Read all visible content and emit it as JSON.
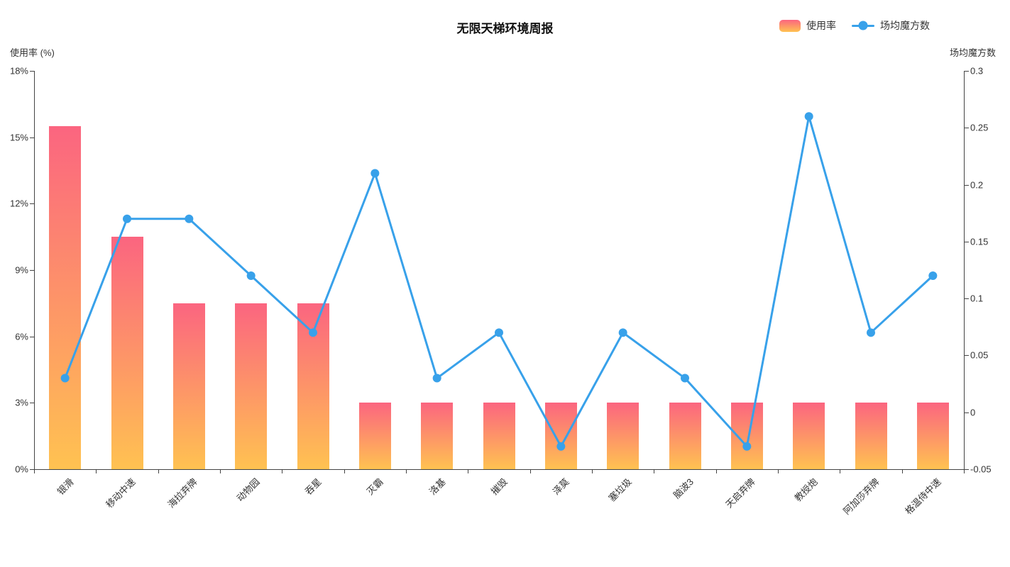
{
  "chart_data": {
    "type": "bar+line",
    "title": "无限天梯环境周报",
    "categories": [
      "银滑",
      "移动中速",
      "海拉弃牌",
      "动物园",
      "吞星",
      "灭霸",
      "洛基",
      "摧毁",
      "泽莫",
      "塞垃圾",
      "脑波3",
      "天启弃牌",
      "教授炮",
      "阿加莎弃牌",
      "格温侍中速"
    ],
    "series": [
      {
        "name": "使用率",
        "type": "bar",
        "axis": "left",
        "unit": "%",
        "values": [
          15.5,
          10.5,
          7.5,
          7.5,
          7.5,
          3,
          3,
          3,
          3,
          3,
          3,
          3,
          3,
          3,
          3
        ]
      },
      {
        "name": "场均魔方数",
        "type": "line",
        "axis": "right",
        "values": [
          0.03,
          0.17,
          0.17,
          0.12,
          0.07,
          0.21,
          0.03,
          0.07,
          -0.03,
          0.07,
          0.03,
          -0.03,
          0.26,
          0.07,
          0.12
        ]
      }
    ],
    "left_axis": {
      "name": "使用率 (%)",
      "min": 0,
      "max": 18,
      "ticks": [
        "0%",
        "3%",
        "6%",
        "9%",
        "12%",
        "15%",
        "18%"
      ]
    },
    "right_axis": {
      "name": "场均魔方数",
      "min": -0.05,
      "max": 0.3,
      "ticks": [
        "-0.05",
        "0",
        "0.05",
        "0.1",
        "0.15",
        "0.2",
        "0.25",
        "0.3"
      ]
    },
    "grid": "off",
    "legend_position": "top-right",
    "x_label_rotation": 45
  },
  "colors": {
    "bar_gradient_top": "#FB6580",
    "bar_gradient_bottom": "#FFC251",
    "line": "#38A1EA",
    "axis_line": "#444444",
    "text": "#333333"
  }
}
